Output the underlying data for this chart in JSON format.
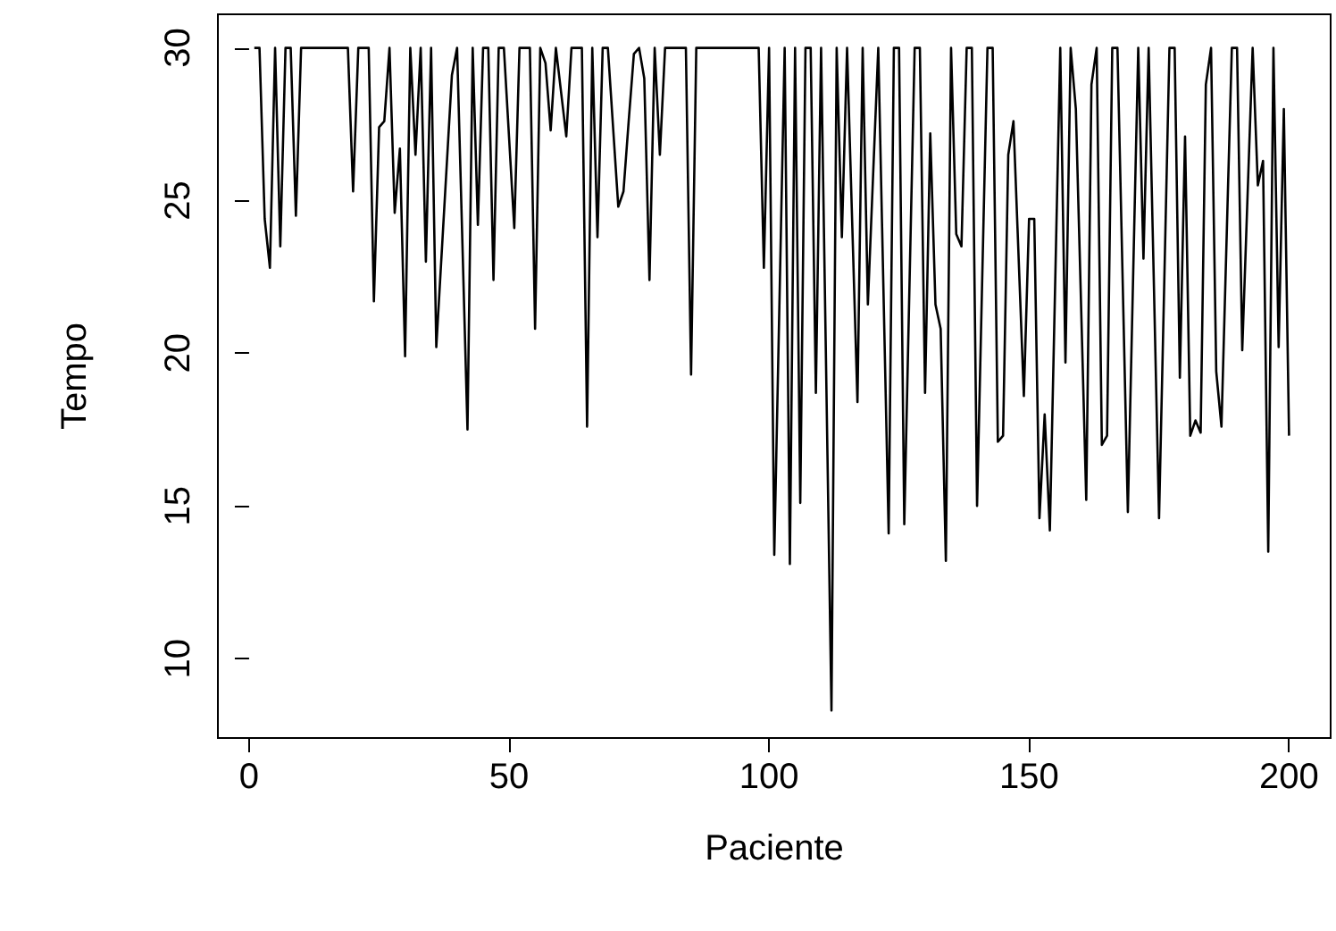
{
  "chart_data": {
    "type": "line",
    "xlabel": "Paciente",
    "ylabel": "Tempo",
    "x": [
      1,
      2,
      3,
      4,
      5,
      6,
      7,
      8,
      9,
      10,
      19,
      20,
      21,
      23,
      24,
      25,
      26,
      27,
      28,
      29,
      30,
      31,
      32,
      33,
      34,
      35,
      36,
      39,
      40,
      42,
      43,
      44,
      45,
      46,
      47,
      48,
      49,
      51,
      52,
      54,
      55,
      56,
      57,
      58,
      59,
      61,
      62,
      64,
      65,
      66,
      67,
      68,
      69,
      71,
      72,
      73,
      74,
      75,
      76,
      77,
      78,
      79,
      80,
      84,
      85,
      86,
      98,
      99,
      100,
      101,
      103,
      104,
      105,
      106,
      107,
      108,
      109,
      110,
      112,
      113,
      114,
      115,
      117,
      118,
      119,
      121,
      123,
      124,
      125,
      126,
      128,
      129,
      130,
      131,
      132,
      133,
      134,
      135,
      136,
      137,
      138,
      139,
      140,
      142,
      143,
      144,
      145,
      146,
      147,
      149,
      150,
      151,
      152,
      153,
      154,
      156,
      157,
      158,
      159,
      161,
      162,
      163,
      164,
      165,
      166,
      167,
      169,
      171,
      172,
      173,
      175,
      177,
      178,
      179,
      180,
      181,
      182,
      183,
      184,
      185,
      186,
      187,
      189,
      190,
      191,
      193,
      194,
      195,
      196,
      197,
      198,
      199,
      200
    ],
    "series": [
      {
        "color": "#000000",
        "values": [
          30,
          30,
          24.4,
          22.8,
          30,
          23.5,
          30,
          30,
          24.5,
          30,
          30,
          25.3,
          30,
          30,
          21.7,
          27.4,
          27.6,
          30,
          24.6,
          26.7,
          19.9,
          30,
          26.5,
          30,
          23,
          30,
          20.2,
          29.1,
          30,
          17.5,
          30,
          24.2,
          30,
          30,
          22.4,
          30,
          30,
          24.1,
          30,
          30,
          20.8,
          30,
          29.5,
          27.3,
          30,
          27.1,
          30,
          30,
          17.6,
          30,
          23.8,
          30,
          30,
          24.8,
          25.3,
          27.6,
          29.8,
          30,
          29,
          22.4,
          30,
          26.5,
          30,
          30,
          19.3,
          30,
          30,
          22.8,
          30,
          13.4,
          30,
          13.1,
          30,
          15.1,
          30,
          30,
          18.7,
          30,
          8.3,
          30,
          23.8,
          30,
          18.4,
          30,
          21.6,
          30,
          14.1,
          30,
          30,
          14.4,
          30,
          30,
          18.7,
          27.2,
          21.6,
          20.8,
          13.2,
          30,
          23.9,
          23.5,
          30,
          30,
          15,
          30,
          30,
          17.1,
          17.3,
          26.5,
          27.6,
          18.6,
          24.4,
          24.4,
          14.6,
          18,
          14.2,
          30,
          19.7,
          30,
          28,
          15.2,
          28.8,
          30,
          17,
          17.3,
          30,
          30,
          14.8,
          30,
          23.1,
          30,
          14.6,
          30,
          30,
          19.2,
          27.1,
          17.3,
          17.8,
          17.4,
          28.8,
          30,
          19.4,
          17.6,
          30,
          30,
          20.1,
          30,
          25.5,
          26.3,
          13.5,
          30,
          20.2,
          28,
          17.3
        ]
      }
    ],
    "xlim": [
      -6,
      208
    ],
    "ylim": [
      7.4,
      31.1
    ],
    "xticks": [
      0,
      50,
      100,
      150,
      200
    ],
    "yticks": [
      10,
      15,
      20,
      25,
      30
    ],
    "grid": false,
    "marker": "none",
    "line_style": "solid"
  }
}
